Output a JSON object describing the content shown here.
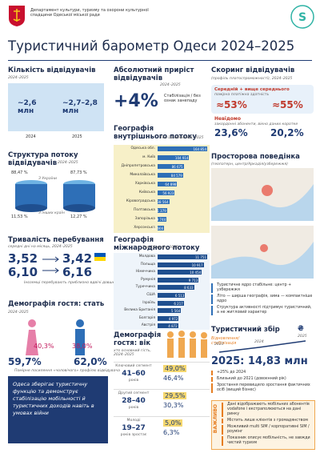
{
  "header": {
    "department": "Департамент культури, туризму та охорони культурної спадщини Одеської міської ради",
    "title": "Туристичний барометр Одеси 2024–2025"
  },
  "visitors": {
    "title": "Кількість відвідувачів",
    "period": "2024–2025",
    "value_2024": "~2,6 млн",
    "value_2025": "~2,7–2,8 млн",
    "label_2024": "2024",
    "label_2025": "2025"
  },
  "growth": {
    "title": "Абсолютний приріст відвідувачів",
    "period": "2024–2025",
    "value": "+4%",
    "note": "Стабілізація / без ознак занепаду"
  },
  "scoring": {
    "title": "Скоринг відвідувачів",
    "subtitle": "(профіль платоспроможності), 2024–2025",
    "segment": "Середній + вище середнього",
    "segment_note": "помірна платіжна здатність",
    "from": "≈53%",
    "to": "≈55%",
    "unknown": "Невідомо",
    "unknown_note": "закордонні абоненти, вікно даних коротке",
    "unknown_from": "23,6%",
    "unknown_to": "20,2%"
  },
  "structure": {
    "title": "Структура потоку відвідувачів",
    "period": "2024–2025",
    "ua_from": "88,47 %",
    "ua_to": "87,73 %",
    "ua_label": "З України",
    "foreign_from": "11,53 %",
    "foreign_to": "12,27 %",
    "foreign_label": "З інших країн"
  },
  "domestic": {
    "title": "Географія внутрішнього потоку",
    "subtitle": "Топ-10 областей, 2025",
    "categories": [
      "Одеська обл.",
      "м. Київ",
      "Дніпропетровська",
      "Миколаївська",
      "Харківська",
      "Київська",
      "Кіровоградська",
      "Полтавська",
      "Запорізька",
      "Херсонська"
    ],
    "values": [
      164854,
      104914,
      86675,
      84579,
      64898,
      56923,
      38564,
      31379,
      29744,
      21666
    ],
    "value_labels": [
      "164 854",
      "104 914",
      "86 675",
      "84 579",
      "64 898",
      "56 923",
      "38 564",
      "31 379",
      "29 744",
      "21 666"
    ]
  },
  "spatial": {
    "title": "Просторова поведінка",
    "subtitle": "(геопатерн, центр/Аркадія/узбережжя)",
    "bullets": [
      "Туристичне ядро стабільне: центр + узбережжя",
      "Літо — ширша географія, зима — компактніше ядро",
      "Структура активності підтримує туристичний, а не житловий характер"
    ]
  },
  "duration": {
    "title": "Тривалість перебування",
    "subtitle": "середні дні на місяць, 2024–2025",
    "ua_from": "3,52",
    "ua_to": "3,42",
    "foreign_from": "6,10",
    "foreign_to": "6,16",
    "note": "Іноземці перебувають приблизно вдвічі довше"
  },
  "international": {
    "title": "Географія міжнародного потоку",
    "subtitle": "Топ-10 країн, 2025",
    "categories": [
      "Молдова",
      "Польща",
      "Німеччина",
      "Румунія",
      "Туреччина",
      "США",
      "Ізраїль",
      "Велика Британія",
      "Болгарія",
      "Австрія"
    ],
    "values": [
      11751,
      10917,
      10454,
      9713,
      8633,
      6513,
      6217,
      5564,
      4972,
      4872
    ],
    "value_labels": [
      "11 751",
      "10 917",
      "10 454",
      "9 713",
      "8 633",
      "6 513",
      "6 217",
      "5 564",
      "4 972",
      "4 872"
    ]
  },
  "gender": {
    "title": "Демографія гостя: стать",
    "period": "2024–2025",
    "female_from": "40,3%",
    "female_to": "38,0%",
    "male_from": "59,7%",
    "male_to": "62,0%",
    "note": "Помірне посилення «чоловічого» профілю відвідувача"
  },
  "age": {
    "title": "Демографія гостя: вік",
    "subtitle": "хто основний гість, 2024–2025",
    "groups": [
      {
        "label": "Ключовий сегмент",
        "range": "41–60",
        "unit": "років",
        "from": "49,0%",
        "to": "46,4%"
      },
      {
        "label": "Другий сегмент",
        "range": "28–40",
        "unit": "років",
        "from": "29,5%",
        "to": "30,3%"
      },
      {
        "label": "Молоді",
        "range": "19–27",
        "unit": "років зростає",
        "from": "5,0%",
        "to": "6,3%"
      }
    ]
  },
  "tax": {
    "title": "Туристичний збір",
    "currency": "₴",
    "trend": "Відновлення/ стабілізація",
    "years": [
      "2023",
      "2024",
      "2025"
    ],
    "headline": "2025: 14,83 млн",
    "bullets": [
      "+25% до 2024",
      "Близький до 2021 (довоєнний рік)",
      "Зростання перевищило зростання фактичних осіб (вищий бізнес)"
    ]
  },
  "quote": "Одеса зберігає туристичну функцію та демонструє стабілізацію мобільності й туристичних доходів навіть в умовах війни",
  "important": {
    "label": "ВАЖЛИВО",
    "items": [
      "Дані відображають мобільних абонентів vodafone і екстраполюються на дані ринку",
      "Містить лише клієнтів з громадянством",
      "Можливий multi SIM / корпоративні SIM / роумінг",
      "Показник описує мобільність, не завжди чистий туризм"
    ]
  }
}
